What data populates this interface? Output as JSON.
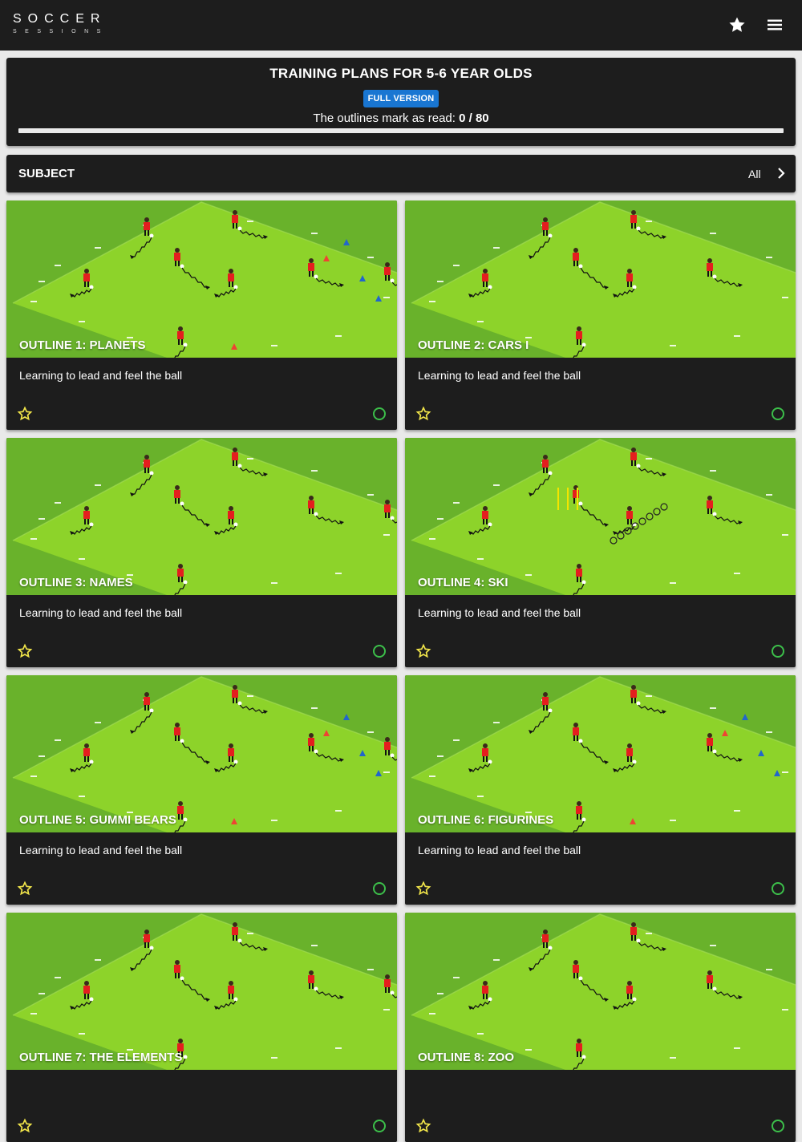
{
  "app": {
    "logo_main": "SOCCER",
    "logo_sub": "SESSIONS"
  },
  "header": {
    "title": "TRAINING PLANS FOR 5-6 YEAR OLDS",
    "version_badge": "FULL VERSION",
    "progress_label": "The outlines mark as read:",
    "progress_value": "0 / 80",
    "progress_read": 0,
    "progress_total": 80
  },
  "filter": {
    "label": "SUBJECT",
    "value": "All"
  },
  "cards": [
    {
      "title": "OUTLINE 1: PLANETS",
      "description": "Learning to lead and feel the ball"
    },
    {
      "title": "OUTLINE 2: CARS I",
      "description": "Learning to lead and feel the ball"
    },
    {
      "title": "OUTLINE 3: NAMES",
      "description": "Learning to lead and feel the ball"
    },
    {
      "title": "OUTLINE 4: SKI",
      "description": "Learning to lead and feel the ball"
    },
    {
      "title": "OUTLINE 5: GUMMI BEARS",
      "description": "Learning to lead and feel the ball"
    },
    {
      "title": "OUTLINE 6: FIGURINES",
      "description": "Learning to lead and feel the ball"
    },
    {
      "title": "OUTLINE 7: THE ELEMENTS",
      "description": ""
    },
    {
      "title": "OUTLINE 8: ZOO",
      "description": ""
    }
  ],
  "colors": {
    "bar_bg": "#1d1d1d",
    "badge_blue": "#1976d2",
    "pitch_outer": "#69b22b",
    "pitch_inner": "#8dd32a",
    "star_yellow": "#f2e64a",
    "read_green": "#3cbf4a",
    "player_red": "#e41e1e"
  },
  "icons": {
    "favorites": "star-icon",
    "menu": "hamburger-menu-icon",
    "subject_chevron": "chevron-right-icon",
    "card_favorite": "star-outline-icon",
    "card_read": "circle-outline-icon"
  }
}
